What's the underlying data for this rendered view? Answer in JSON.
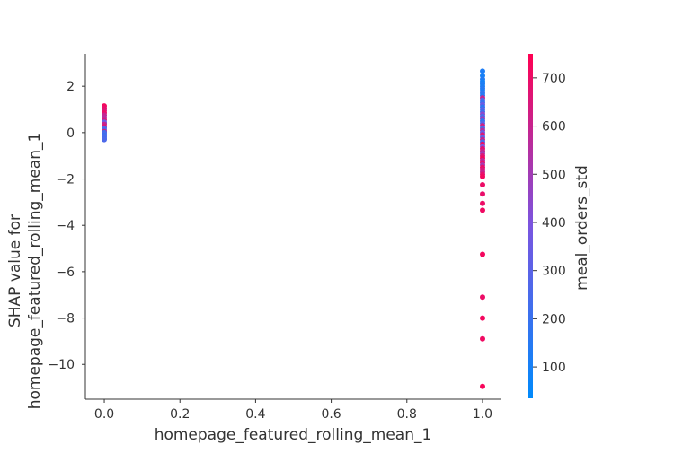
{
  "chart_data": {
    "type": "scatter",
    "title": "",
    "xlabel": "homepage_featured_rolling_mean_1",
    "ylabel_lines": [
      "SHAP value for",
      "homepage_featured_rolling_mean_1"
    ],
    "xlim": [
      -0.05,
      1.05
    ],
    "ylim": [
      -11.5,
      3.4
    ],
    "xticks": [
      0.0,
      0.2,
      0.4,
      0.6,
      0.8,
      1.0
    ],
    "xtick_labels": [
      "0.0",
      "0.2",
      "0.4",
      "0.6",
      "0.8",
      "1.0"
    ],
    "yticks": [
      2,
      0,
      -2,
      -4,
      -6,
      -8,
      -10
    ],
    "ytick_labels": [
      "2",
      "0",
      "−2",
      "−4",
      "−6",
      "−8",
      "−10"
    ],
    "grid": false,
    "colorbar": {
      "label": "meal_orders_std",
      "range": [
        35,
        750
      ],
      "ticks": [
        100,
        200,
        300,
        400,
        500,
        600,
        700
      ],
      "tick_labels": [
        "100",
        "200",
        "300",
        "400",
        "500",
        "600",
        "700"
      ],
      "colors": [
        "#008afb",
        "#7a55e0",
        "#ff0052"
      ]
    },
    "series": [
      {
        "points": [
          [
            0,
            1.15,
            720
          ],
          [
            0,
            1.05,
            690
          ],
          [
            0,
            0.95,
            650
          ],
          [
            0,
            0.85,
            700
          ],
          [
            0,
            0.75,
            600
          ],
          [
            0,
            0.65,
            560
          ],
          [
            0,
            0.55,
            640
          ],
          [
            0,
            0.45,
            330
          ],
          [
            0,
            0.4,
            380
          ],
          [
            0,
            0.35,
            600
          ],
          [
            0,
            0.25,
            680
          ],
          [
            0,
            0.2,
            300
          ],
          [
            0,
            0.12,
            250
          ],
          [
            0,
            0.05,
            620
          ],
          [
            0,
            0.0,
            220
          ],
          [
            0,
            -0.05,
            260
          ],
          [
            0,
            -0.12,
            200
          ],
          [
            0,
            -0.18,
            280
          ],
          [
            0,
            -0.25,
            230
          ],
          [
            0,
            -0.3,
            260
          ],
          [
            1,
            2.65,
            120
          ],
          [
            1,
            2.45,
            100
          ],
          [
            1,
            2.3,
            140
          ],
          [
            1,
            2.2,
            90
          ],
          [
            1,
            2.1,
            130
          ],
          [
            1,
            2.0,
            110
          ],
          [
            1,
            1.9,
            150
          ],
          [
            1,
            1.8,
            120
          ],
          [
            1,
            1.7,
            180
          ],
          [
            1,
            1.6,
            140
          ],
          [
            1,
            1.5,
            600
          ],
          [
            1,
            1.4,
            260
          ],
          [
            1,
            1.3,
            200
          ],
          [
            1,
            1.2,
            350
          ],
          [
            1,
            1.1,
            160
          ],
          [
            1,
            1.0,
            300
          ],
          [
            1,
            0.9,
            220
          ],
          [
            1,
            0.8,
            450
          ],
          [
            1,
            0.7,
            250
          ],
          [
            1,
            0.6,
            500
          ],
          [
            1,
            0.5,
            180
          ],
          [
            1,
            0.4,
            280
          ],
          [
            1,
            0.3,
            620
          ],
          [
            1,
            0.2,
            230
          ],
          [
            1,
            0.1,
            550
          ],
          [
            1,
            0.0,
            350
          ],
          [
            1,
            -0.1,
            650
          ],
          [
            1,
            -0.2,
            300
          ],
          [
            1,
            -0.3,
            600
          ],
          [
            1,
            -0.4,
            240
          ],
          [
            1,
            -0.5,
            700
          ],
          [
            1,
            -0.6,
            400
          ],
          [
            1,
            -0.7,
            680
          ],
          [
            1,
            -0.8,
            600
          ],
          [
            1,
            -0.9,
            500
          ],
          [
            1,
            -1.0,
            650
          ],
          [
            1,
            -1.1,
            720
          ],
          [
            1,
            -1.2,
            560
          ],
          [
            1,
            -1.3,
            680
          ],
          [
            1,
            -1.4,
            520
          ],
          [
            1,
            -1.5,
            700
          ],
          [
            1,
            -1.6,
            640
          ],
          [
            1,
            -1.7,
            600
          ],
          [
            1,
            -1.8,
            680
          ],
          [
            1,
            -1.9,
            720
          ],
          [
            1,
            -2.25,
            700
          ],
          [
            1,
            -2.65,
            690
          ],
          [
            1,
            -3.05,
            700
          ],
          [
            1,
            -3.35,
            710
          ],
          [
            1,
            -5.25,
            720
          ],
          [
            1,
            -7.1,
            700
          ],
          [
            1,
            -8.0,
            720
          ],
          [
            1,
            -8.9,
            710
          ],
          [
            1,
            -10.95,
            730
          ]
        ]
      }
    ]
  }
}
